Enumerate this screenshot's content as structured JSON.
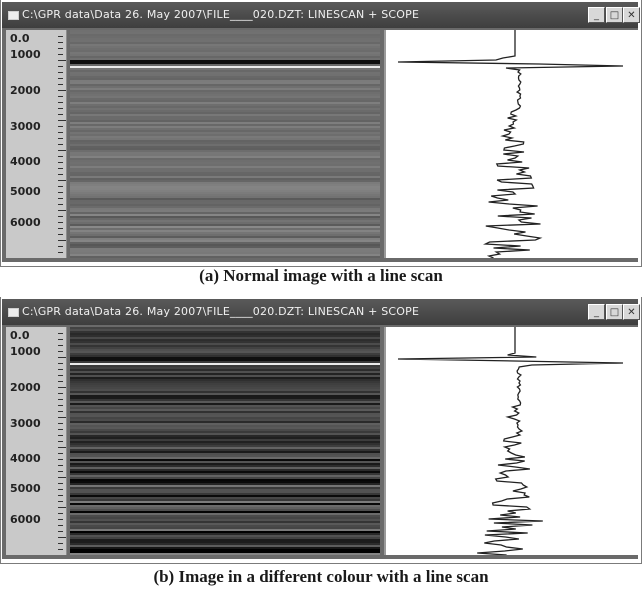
{
  "panels": [
    {
      "window_title": "C:\\GPR data\\Data 26. May 2007\\FILE____020.DZT: LINESCAN + SCOPE",
      "scale_labels": [
        "0.0",
        "1000",
        "2000",
        "3000",
        "4000",
        "5000",
        "6000"
      ],
      "caption": "(a)  Normal image with a line scan",
      "controls": {
        "minimize": "_",
        "maximize": "□",
        "close": "✕"
      }
    },
    {
      "window_title": "C:\\GPR data\\Data 26. May 2007\\FILE____020.DZT: LINESCAN + SCOPE",
      "scale_labels": [
        "0.0",
        "1000",
        "2000",
        "3000",
        "4000",
        "5000",
        "6000"
      ],
      "caption": "(b) Image in a different colour with a line scan",
      "controls": {
        "minimize": "_",
        "maximize": "□",
        "close": "✕"
      }
    }
  ],
  "colors": {
    "titlebar": "#4a4a4a",
    "scale_bg": "#c9c9c9",
    "radar_a": "#6f6f6f",
    "radar_b": "#3f3f3f",
    "trace": "#222222"
  }
}
